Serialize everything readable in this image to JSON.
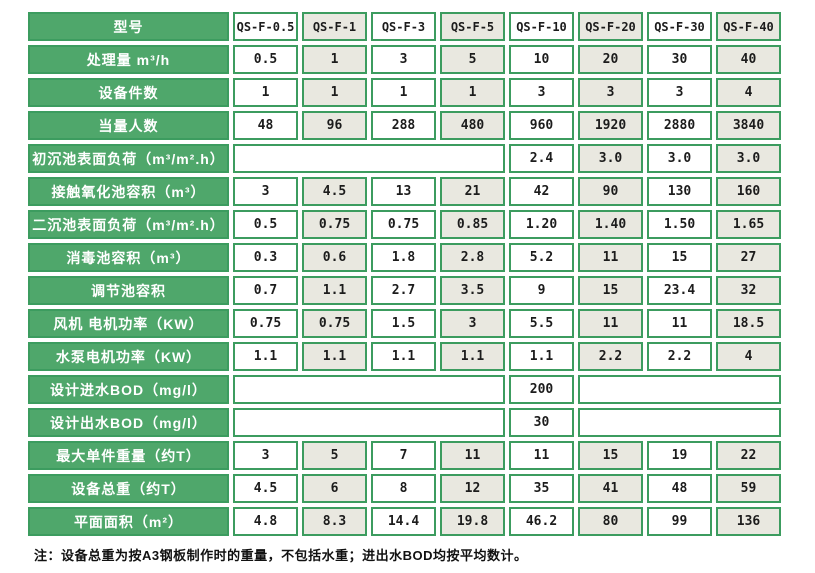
{
  "colors": {
    "label_green": "#4fa76b",
    "border_green": "#3c9c5f",
    "alt_cell_beige": "#e9e8e0",
    "value_text": "#1c1c1c",
    "label_text": "#ffffff"
  },
  "table": {
    "header": {
      "label": "型号",
      "models": [
        "QS-F-0.5",
        "QS-F-1",
        "QS-F-3",
        "QS-F-5",
        "QS-F-10",
        "QS-F-20",
        "QS-F-30",
        "QS-F-40"
      ]
    },
    "rows": [
      {
        "label": "处理量 m³/h",
        "values": [
          "0.5",
          "1",
          "3",
          "5",
          "10",
          "20",
          "30",
          "40"
        ]
      },
      {
        "label": "设备件数",
        "values": [
          "1",
          "1",
          "1",
          "1",
          "3",
          "3",
          "3",
          "4"
        ]
      },
      {
        "label": "当量人数",
        "values": [
          "48",
          "96",
          "288",
          "480",
          "960",
          "1920",
          "2880",
          "3840"
        ]
      },
      {
        "label": "初沉池表面负荷（m³/m².h）",
        "merged_left_cols": 4,
        "values": [
          "2.4",
          "3.0",
          "3.0",
          "3.0"
        ]
      },
      {
        "label": "接触氧化池容积（m³）",
        "values": [
          "3",
          "4.5",
          "13",
          "21",
          "42",
          "90",
          "130",
          "160"
        ]
      },
      {
        "label": "二沉池表面负荷（m³/m².h）",
        "values": [
          "0.5",
          "0.75",
          "0.75",
          "0.85",
          "1.20",
          "1.40",
          "1.50",
          "1.65"
        ]
      },
      {
        "label": "消毒池容积（m³）",
        "values": [
          "0.3",
          "0.6",
          "1.8",
          "2.8",
          "5.2",
          "11",
          "15",
          "27"
        ]
      },
      {
        "label": "调节池容积",
        "values": [
          "0.7",
          "1.1",
          "2.7",
          "3.5",
          "9",
          "15",
          "23.4",
          "32"
        ]
      },
      {
        "label": "风机 电机功率（KW）",
        "values": [
          "0.75",
          "0.75",
          "1.5",
          "3",
          "5.5",
          "11",
          "11",
          "18.5"
        ]
      },
      {
        "label": "水泵电机功率（KW）",
        "values": [
          "1.1",
          "1.1",
          "1.1",
          "1.1",
          "1.1",
          "2.2",
          "2.2",
          "4"
        ]
      },
      {
        "label": "设计进水BOD（mg/l）",
        "merged_left_cols": 4,
        "merged_right_cols": 3,
        "values": [
          "200"
        ]
      },
      {
        "label": "设计出水BOD（mg/l）",
        "merged_left_cols": 4,
        "merged_right_cols": 3,
        "values": [
          "30"
        ]
      },
      {
        "label": "最大单件重量（约T）",
        "values": [
          "3",
          "5",
          "7",
          "11",
          "11",
          "15",
          "19",
          "22"
        ]
      },
      {
        "label": "设备总重（约T）",
        "values": [
          "4.5",
          "6",
          "8",
          "12",
          "35",
          "41",
          "48",
          "59"
        ]
      },
      {
        "label": "平面面积（m²）",
        "values": [
          "4.8",
          "8.3",
          "14.4",
          "19.8",
          "46.2",
          "80",
          "99",
          "136"
        ]
      }
    ]
  },
  "note": "注：设备总重为按A3钢板制作时的重量，不包括水重；进出水BOD均按平均数计。"
}
